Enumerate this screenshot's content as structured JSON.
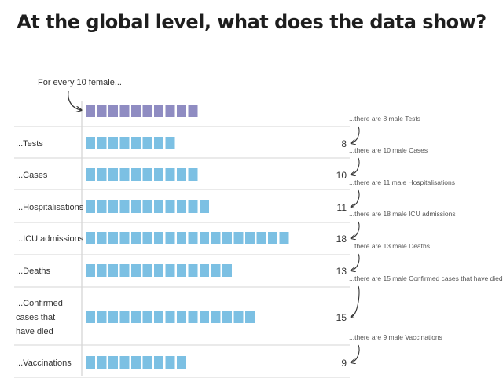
{
  "title": "At the global level, what does the data show?",
  "chart_data": {
    "type": "bar",
    "reference": {
      "label": "For every 10 female...",
      "value": 10,
      "color": "#8f8cc2"
    },
    "categories": [
      "...Tests",
      "...Cases",
      "...Hospitalisations",
      "...ICU admissions",
      "...Deaths",
      "...Confirmed cases that have died",
      "...Vaccinations"
    ],
    "values": [
      8,
      10,
      11,
      18,
      13,
      15,
      9
    ],
    "value_labels": [
      "8",
      "10",
      "11",
      "18",
      "13",
      "15",
      "9"
    ],
    "annotations": [
      "...there are 8 male Tests",
      "...there are 10 male Cases",
      "...there are 11 male Hospitalisations",
      "...there are 18 male ICU admissions",
      "...there are 13 male Deaths",
      "...there are 15 male Confirmed cases that have died",
      "...there are 9 male Vaccinations"
    ],
    "bar_color": "#7cc0e3",
    "grid": false
  }
}
